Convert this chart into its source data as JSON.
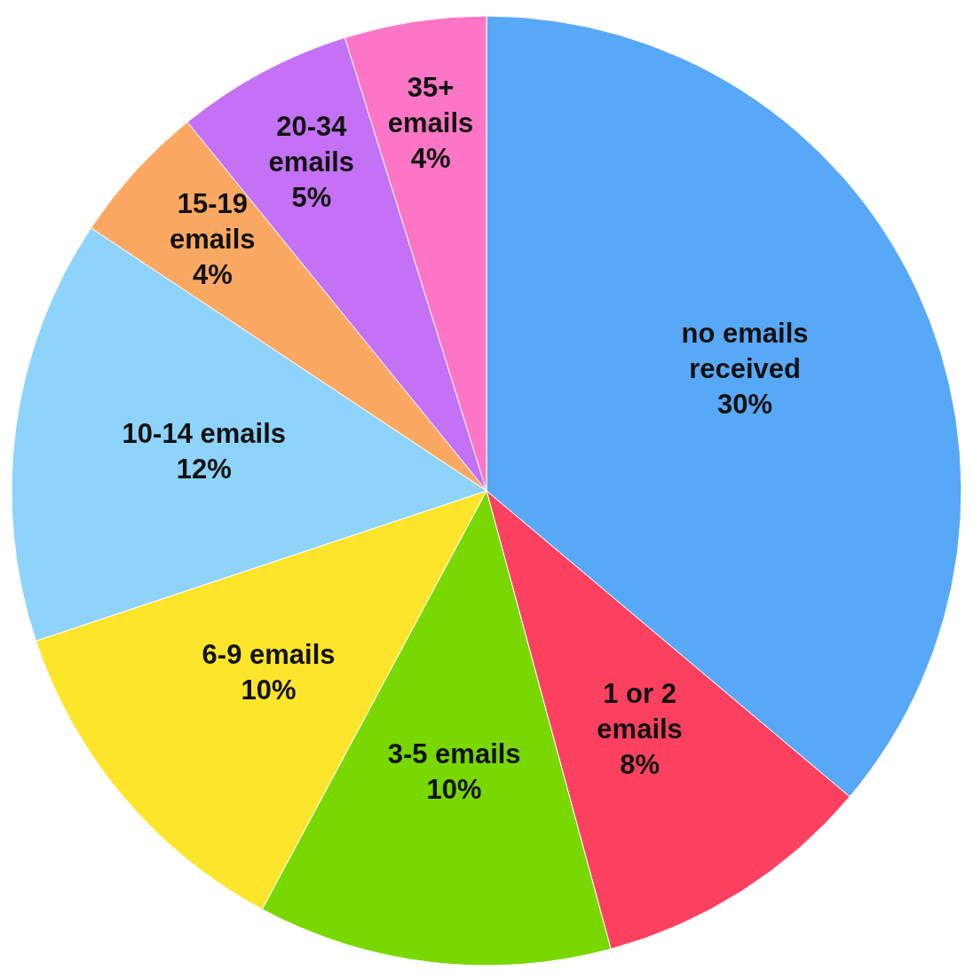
{
  "chart_data": {
    "type": "pie",
    "categories": [
      "no emails received",
      "1 or 2 emails",
      "3-5 emails",
      "6-9 emails",
      "10-14 emails",
      "15-19 emails",
      "20-34 emails",
      "35+ emails"
    ],
    "values": [
      30,
      8,
      10,
      10,
      12,
      4,
      5,
      4
    ],
    "value_labels": [
      "30%",
      "8%",
      "10%",
      "10%",
      "12%",
      "4%",
      "5%",
      "4%"
    ],
    "colors": [
      "#58a8f8",
      "#fc4160",
      "#78d800",
      "#fce52a",
      "#8dd3fb",
      "#fba862",
      "#c471f5",
      "#fc76c5"
    ]
  }
}
